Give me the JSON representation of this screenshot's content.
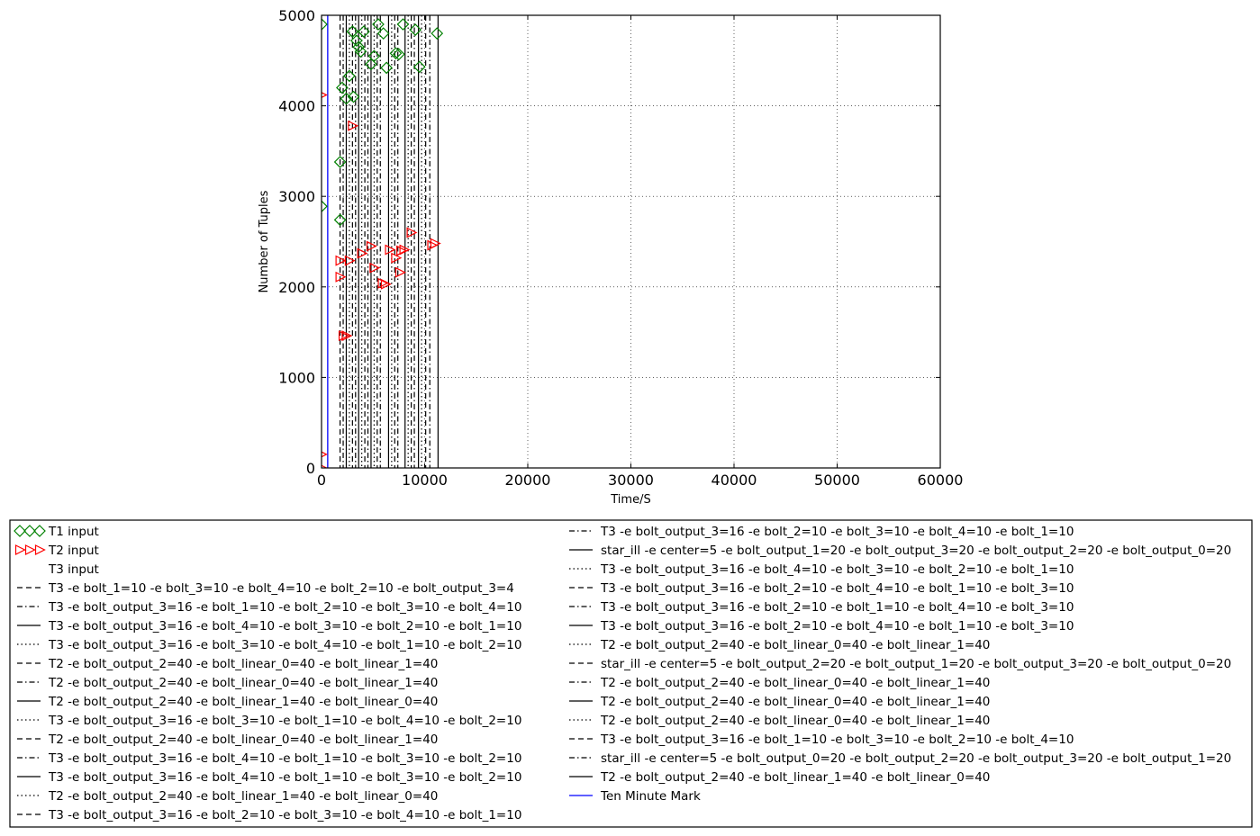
{
  "chart_data": {
    "type": "scatter",
    "xlabel": "Time/S",
    "ylabel": "Number of Tuples",
    "xlim": [
      0,
      60000
    ],
    "ylim": [
      0,
      5000
    ],
    "x_ticks": [
      0,
      10000,
      20000,
      30000,
      40000,
      50000,
      60000
    ],
    "y_ticks": [
      0,
      1000,
      2000,
      3000,
      4000,
      5000
    ],
    "grid": true,
    "grid_style": "dotted",
    "legend_placement": "below",
    "legend_columns": 2,
    "colors": {
      "t1": "#008000",
      "t2": "#ff0000",
      "mark": "#0000ff",
      "line": "#000000"
    },
    "series": [
      {
        "name": "T1 input",
        "marker": "diamond",
        "color": "#008000",
        "points": [
          [
            0,
            4900
          ],
          [
            0,
            2890
          ],
          [
            1800,
            3380
          ],
          [
            1800,
            2740
          ],
          [
            2000,
            4200
          ],
          [
            2400,
            4080
          ],
          [
            2700,
            4330
          ],
          [
            3000,
            4820
          ],
          [
            3100,
            4100
          ],
          [
            3400,
            4720
          ],
          [
            3600,
            4650
          ],
          [
            3800,
            4600
          ],
          [
            4100,
            4820
          ],
          [
            4800,
            4460
          ],
          [
            5100,
            4550
          ],
          [
            5500,
            4900
          ],
          [
            6000,
            4800
          ],
          [
            6300,
            4420
          ],
          [
            7200,
            4580
          ],
          [
            7500,
            4570
          ],
          [
            7900,
            4900
          ],
          [
            9100,
            4840
          ],
          [
            9500,
            4430
          ],
          [
            11200,
            4800
          ]
        ]
      },
      {
        "name": "T2 input",
        "marker": "triangle-right",
        "color": "#ff0000",
        "points": [
          [
            0,
            4120
          ],
          [
            0,
            150
          ],
          [
            0,
            0
          ],
          [
            1800,
            2290
          ],
          [
            1800,
            2110
          ],
          [
            2100,
            1460
          ],
          [
            2400,
            1460
          ],
          [
            2700,
            2290
          ],
          [
            3000,
            3780
          ],
          [
            3900,
            2370
          ],
          [
            4800,
            2450
          ],
          [
            5100,
            2210
          ],
          [
            5900,
            2040
          ],
          [
            6200,
            2030
          ],
          [
            6600,
            2410
          ],
          [
            7200,
            2320
          ],
          [
            7600,
            2160
          ],
          [
            7700,
            2400
          ],
          [
            8000,
            2410
          ],
          [
            8700,
            2600
          ],
          [
            10700,
            2460
          ],
          [
            11000,
            2480
          ]
        ]
      },
      {
        "name": "T3 input",
        "marker": "none",
        "points": []
      }
    ],
    "vlines": [
      {
        "name": "T3 -e bolt_1=10 -e bolt_3=10 -e bolt_4=10 -e bolt_2=10 -e bolt_output_3=4",
        "style": "dashed",
        "x": 1800
      },
      {
        "name": "T3 -e bolt_output_3=16 -e bolt_1=10 -e bolt_2=10 -e bolt_3=10 -e bolt_4=10",
        "style": "dashdot",
        "x": 2100
      },
      {
        "name": "T3 -e bolt_output_3=16 -e bolt_4=10 -e bolt_3=10 -e bolt_2=10 -e bolt_1=10",
        "style": "solid",
        "x": 2400
      },
      {
        "name": "T3 -e bolt_output_3=16 -e bolt_3=10 -e bolt_4=10 -e bolt_1=10 -e bolt_2=10",
        "style": "dotted",
        "x": 2700
      },
      {
        "name": "T2 -e bolt_output_2=40 -e bolt_linear_0=40 -e bolt_linear_1=40",
        "style": "dashed",
        "x": 3000
      },
      {
        "name": "T2 -e bolt_output_2=40 -e bolt_linear_0=40 -e bolt_linear_1=40",
        "style": "dashdot",
        "x": 3300
      },
      {
        "name": "T2 -e bolt_output_2=40 -e bolt_linear_1=40 -e bolt_linear_0=40",
        "style": "solid",
        "x": 3600
      },
      {
        "name": "T3 -e bolt_output_3=16 -e bolt_3=10 -e bolt_1=10 -e bolt_4=10 -e bolt_2=10",
        "style": "dotted",
        "x": 3900
      },
      {
        "name": "T2 -e bolt_output_2=40 -e bolt_linear_0=40 -e bolt_linear_1=40",
        "style": "dashed",
        "x": 4200
      },
      {
        "name": "T3 -e bolt_output_3=16 -e bolt_4=10 -e bolt_1=10 -e bolt_3=10 -e bolt_2=10",
        "style": "dashdot",
        "x": 4500
      },
      {
        "name": "T3 -e bolt_output_3=16 -e bolt_4=10 -e bolt_1=10 -e bolt_3=10 -e bolt_2=10",
        "style": "solid",
        "x": 4800
      },
      {
        "name": "T2 -e bolt_output_2=40 -e bolt_linear_1=40 -e bolt_linear_0=40",
        "style": "dotted",
        "x": 5100
      },
      {
        "name": "T3 -e bolt_output_3=16 -e bolt_2=10 -e bolt_3=10 -e bolt_4=10 -e bolt_1=10",
        "style": "dashed",
        "x": 5400
      },
      {
        "name": "T3 -e bolt_output_3=16 -e bolt_2=10 -e bolt_3=10 -e bolt_4=10 -e bolt_1=10",
        "style": "dashdot",
        "x": 5700
      },
      {
        "name": "star_ill -e center=5 -e bolt_output_1=20 -e bolt_output_3=20 -e bolt_output_2=20 -e bolt_output_0=20",
        "style": "solid",
        "x": 6500
      },
      {
        "name": "T3 -e bolt_output_3=16 -e bolt_4=10 -e bolt_3=10 -e bolt_2=10 -e bolt_1=10",
        "style": "dotted",
        "x": 6800
      },
      {
        "name": "T3 -e bolt_output_3=16 -e bolt_2=10 -e bolt_4=10 -e bolt_1=10 -e bolt_3=10",
        "style": "dashed",
        "x": 7100
      },
      {
        "name": "T3 -e bolt_output_3=16 -e bolt_2=10 -e bolt_1=10 -e bolt_4=10 -e bolt_3=10",
        "style": "dashdot",
        "x": 7400
      },
      {
        "name": "T3 -e bolt_output_3=16 -e bolt_2=10 -e bolt_4=10 -e bolt_1=10 -e bolt_3=10",
        "style": "solid",
        "x": 8100
      },
      {
        "name": "T2 -e bolt_output_2=40 -e bolt_linear_0=40 -e bolt_linear_1=40",
        "style": "dotted",
        "x": 8400
      },
      {
        "name": "star_ill -e center=5 -e bolt_output_2=20 -e bolt_output_1=20 -e bolt_output_3=20 -e bolt_output_0=20",
        "style": "dashed",
        "x": 8700
      },
      {
        "name": "T2 -e bolt_output_2=40 -e bolt_linear_0=40 -e bolt_linear_1=40",
        "style": "dashdot",
        "x": 9000
      },
      {
        "name": "T2 -e bolt_output_2=40 -e bolt_linear_0=40 -e bolt_linear_1=40",
        "style": "solid",
        "x": 9400
      },
      {
        "name": "T2 -e bolt_output_2=40 -e bolt_linear_0=40 -e bolt_linear_1=40",
        "style": "dotted",
        "x": 9700
      },
      {
        "name": "T3 -e bolt_output_3=16 -e bolt_1=10 -e bolt_3=10 -e bolt_2=10 -e bolt_4=10",
        "style": "dashed",
        "x": 10100
      },
      {
        "name": "star_ill -e center=5 -e bolt_output_0=20 -e bolt_output_2=20 -e bolt_output_3=20 -e bolt_output_1=20",
        "style": "dashdot",
        "x": 10500
      },
      {
        "name": "T2 -e bolt_output_2=40 -e bolt_linear_1=40 -e bolt_linear_0=40",
        "style": "solid",
        "x": 11300
      }
    ],
    "mark_line": {
      "name": "Ten Minute Mark",
      "x": 600,
      "color": "#0000ff"
    }
  }
}
